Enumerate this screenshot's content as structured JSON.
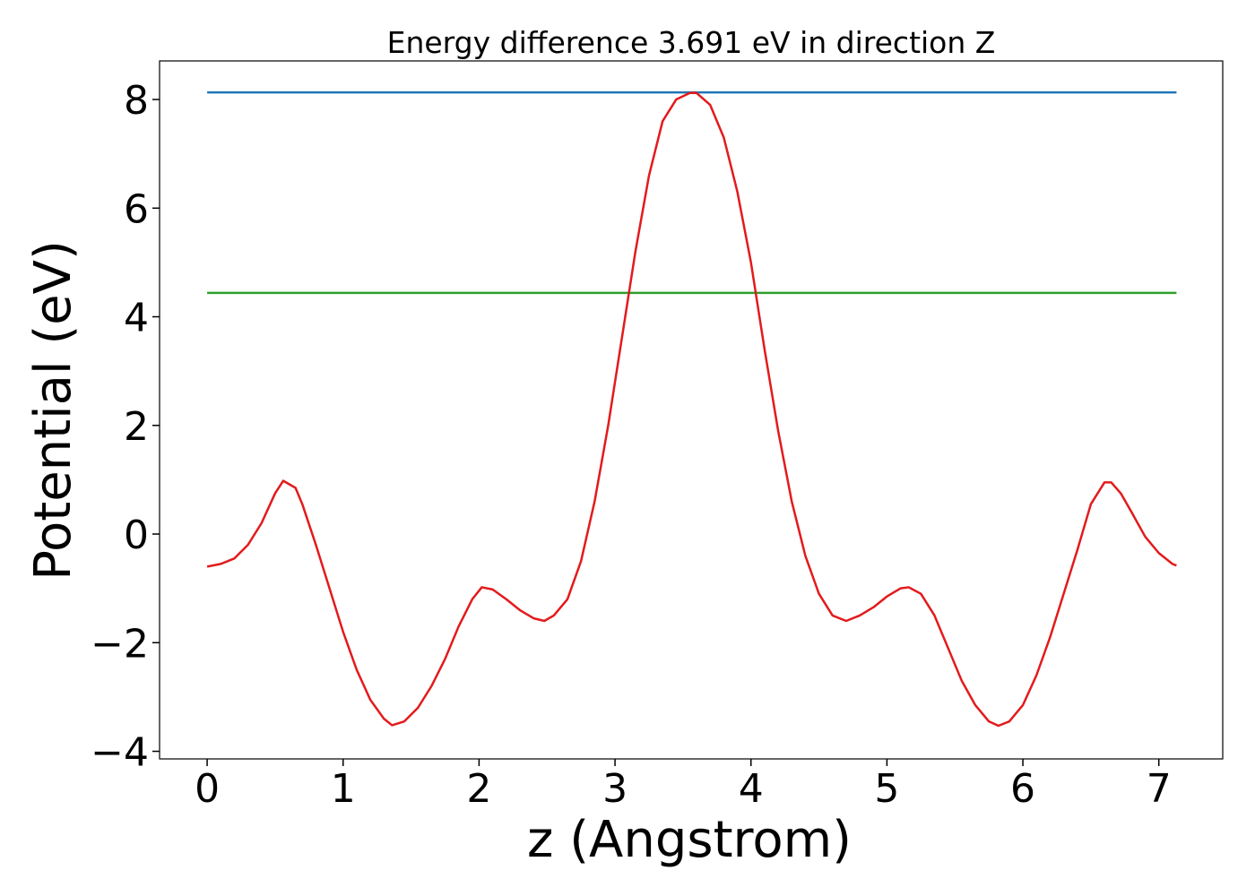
{
  "chart_data": {
    "type": "line",
    "title": "Energy difference 3.691 eV in direction Z",
    "xlabel": "z (Angstrom)",
    "ylabel": "Potential (eV)",
    "xlim": [
      -0.35,
      7.47
    ],
    "ylim": [
      -4.14,
      8.71
    ],
    "xticks": [
      0,
      1,
      2,
      3,
      4,
      5,
      6,
      7
    ],
    "yticks": [
      {
        "value": -4,
        "label": "−4"
      },
      {
        "value": -2,
        "label": "−2"
      },
      0,
      2,
      4,
      6,
      8
    ],
    "series": [
      {
        "color": "#1f77b4",
        "x": [
          0,
          7.13
        ],
        "values": [
          8.13,
          8.13
        ]
      },
      {
        "color": "#2ca02c",
        "x": [
          0,
          7.13
        ],
        "values": [
          4.44,
          4.44
        ]
      },
      {
        "color": "#e31a1c",
        "x": [
          0,
          0.1,
          0.2,
          0.3,
          0.4,
          0.5,
          0.56,
          0.65,
          0.7,
          0.8,
          0.9,
          1.0,
          1.1,
          1.2,
          1.3,
          1.36,
          1.45,
          1.55,
          1.65,
          1.75,
          1.85,
          1.95,
          2.02,
          2.1,
          2.2,
          2.3,
          2.4,
          2.48,
          2.55,
          2.65,
          2.75,
          2.85,
          2.95,
          3.05,
          3.15,
          3.25,
          3.35,
          3.45,
          3.55,
          3.6,
          3.7,
          3.8,
          3.9,
          4.0,
          4.1,
          4.2,
          4.3,
          4.4,
          4.5,
          4.6,
          4.7,
          4.8,
          4.9,
          5.0,
          5.1,
          5.16,
          5.25,
          5.35,
          5.45,
          5.55,
          5.65,
          5.75,
          5.82,
          5.9,
          6.0,
          6.1,
          6.2,
          6.3,
          6.4,
          6.5,
          6.6,
          6.65,
          6.72,
          6.8,
          6.9,
          7.0,
          7.1,
          7.13
        ],
        "values": [
          -0.6,
          -0.55,
          -0.45,
          -0.2,
          0.2,
          0.75,
          0.98,
          0.85,
          0.55,
          -0.2,
          -1.0,
          -1.8,
          -2.5,
          -3.05,
          -3.4,
          -3.52,
          -3.45,
          -3.2,
          -2.8,
          -2.3,
          -1.7,
          -1.2,
          -0.98,
          -1.02,
          -1.2,
          -1.4,
          -1.55,
          -1.6,
          -1.5,
          -1.2,
          -0.5,
          0.6,
          2.0,
          3.6,
          5.2,
          6.6,
          7.6,
          8.0,
          8.12,
          8.12,
          7.9,
          7.3,
          6.3,
          5.0,
          3.4,
          1.9,
          0.6,
          -0.4,
          -1.1,
          -1.5,
          -1.6,
          -1.5,
          -1.35,
          -1.15,
          -1.0,
          -0.98,
          -1.1,
          -1.5,
          -2.1,
          -2.7,
          -3.15,
          -3.45,
          -3.53,
          -3.45,
          -3.15,
          -2.6,
          -1.9,
          -1.1,
          -0.3,
          0.55,
          0.95,
          0.95,
          0.75,
          0.4,
          -0.05,
          -0.35,
          -0.55,
          -0.58
        ]
      }
    ]
  }
}
